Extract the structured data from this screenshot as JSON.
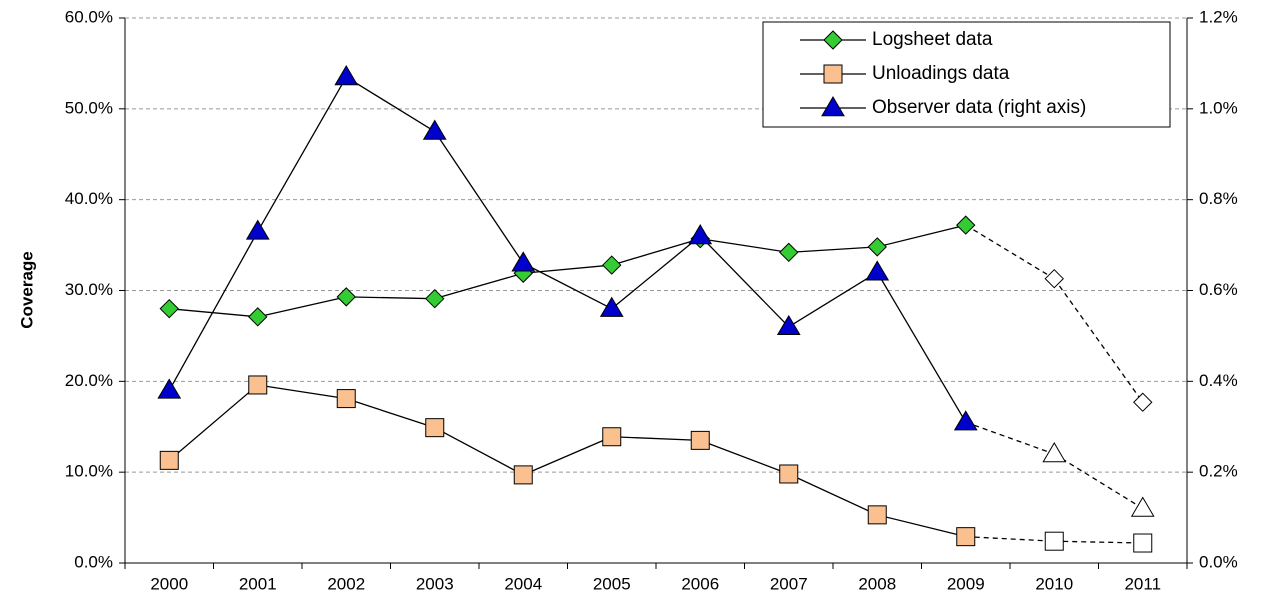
{
  "chart_data": {
    "type": "line",
    "y_label": "Coverage",
    "categories": [
      "2000",
      "2001",
      "2002",
      "2003",
      "2004",
      "2005",
      "2006",
      "2007",
      "2008",
      "2009",
      "2010",
      "2011"
    ],
    "estimate_start": 10,
    "series": [
      {
        "name": "Logsheet data",
        "color": "#33cc33",
        "marker": "diamond",
        "axis": "y",
        "values": [
          28.0,
          27.1,
          29.3,
          29.1,
          31.9,
          32.8,
          35.7,
          34.2,
          34.8,
          37.2,
          31.3,
          17.7
        ]
      },
      {
        "name": "Unloadings data",
        "color": "#fac090",
        "marker": "square",
        "axis": "y",
        "values": [
          11.3,
          19.6,
          18.1,
          14.9,
          9.7,
          13.9,
          13.5,
          9.8,
          5.3,
          2.9,
          2.4,
          2.2
        ]
      },
      {
        "name": "Observer data (right axis)",
        "color": "#0000cc",
        "marker": "triangle",
        "axis": "y2",
        "values": [
          0.38,
          0.73,
          1.07,
          0.95,
          0.66,
          0.56,
          0.72,
          0.52,
          0.64,
          0.31,
          0.24,
          0.12
        ]
      }
    ],
    "ylim": [
      0,
      60
    ],
    "yticks": [
      {
        "value": 0,
        "label": "0.0%"
      },
      {
        "value": 10,
        "label": "10.0%"
      },
      {
        "value": 20,
        "label": "20.0%"
      },
      {
        "value": 30,
        "label": "30.0%"
      },
      {
        "value": 40,
        "label": "40.0%"
      },
      {
        "value": 50,
        "label": "50.0%"
      },
      {
        "value": 60,
        "label": "60.0%"
      }
    ],
    "y2lim": [
      0,
      1.2
    ],
    "y2ticks": [
      {
        "value": 0,
        "label": "0.0%"
      },
      {
        "value": 0.2,
        "label": "0.2%"
      },
      {
        "value": 0.4,
        "label": "0.4%"
      },
      {
        "value": 0.6,
        "label": "0.6%"
      },
      {
        "value": 0.8,
        "label": "0.8%"
      },
      {
        "value": 1.0,
        "label": "1.0%"
      },
      {
        "value": 1.2,
        "label": "1.2%"
      }
    ],
    "grid": true,
    "legend": "upper right"
  }
}
